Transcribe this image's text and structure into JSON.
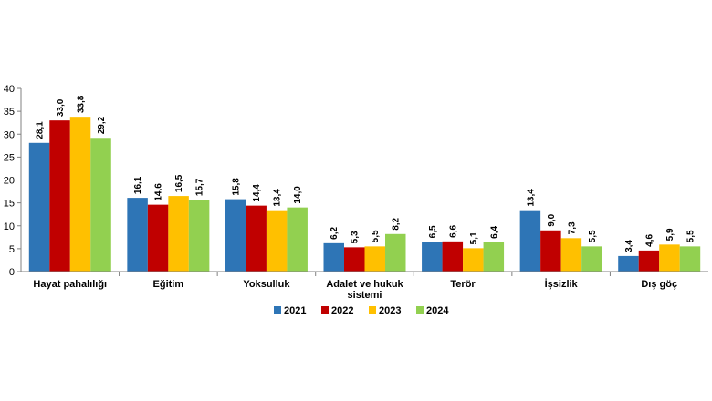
{
  "chart_data": {
    "type": "bar",
    "categories": [
      [
        "Hayat pahalılığı"
      ],
      [
        "Eğitim"
      ],
      [
        "Yoksulluk"
      ],
      [
        "Adalet ve hukuk",
        "sistemi"
      ],
      [
        "Terör"
      ],
      [
        "İşsizlik"
      ],
      [
        "Dış göç"
      ]
    ],
    "series": [
      {
        "name": "2021",
        "color": "#2e75b6",
        "values": [
          28.1,
          16.1,
          15.8,
          6.2,
          6.5,
          13.4,
          3.4
        ],
        "labels": [
          "28,1",
          "16,1",
          "15,8",
          "6,2",
          "6,5",
          "13,4",
          "3,4"
        ]
      },
      {
        "name": "2022",
        "color": "#c00000",
        "values": [
          33.0,
          14.6,
          14.4,
          5.3,
          6.6,
          9.0,
          4.6
        ],
        "labels": [
          "33,0",
          "14,6",
          "14,4",
          "5,3",
          "6,6",
          "9,0",
          "4,6"
        ]
      },
      {
        "name": "2023",
        "color": "#ffc000",
        "values": [
          33.8,
          16.5,
          13.4,
          5.5,
          5.1,
          7.3,
          5.9
        ],
        "labels": [
          "33,8",
          "16,5",
          "13,4",
          "5,5",
          "5,1",
          "7,3",
          "5,9"
        ]
      },
      {
        "name": "2024",
        "color": "#92d050",
        "values": [
          29.2,
          15.7,
          14.0,
          8.2,
          6.4,
          5.5,
          5.5
        ],
        "labels": [
          "29,2",
          "15,7",
          "14,0",
          "8,2",
          "6,4",
          "5,5",
          "5,5"
        ]
      }
    ],
    "yticks": [
      "0",
      "5",
      "10",
      "15",
      "20",
      "25",
      "30",
      "35",
      "40"
    ],
    "ylim": [
      0,
      40
    ],
    "grid": false,
    "legend": "bottom"
  }
}
